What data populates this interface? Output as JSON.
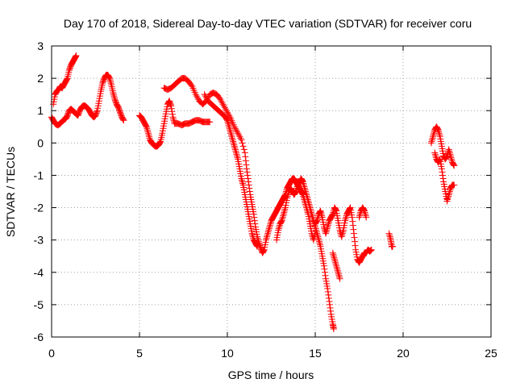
{
  "chart_data": {
    "type": "scatter",
    "title": "Day 170 of 2018, Sidereal Day-to-day VTEC variation (SDTVAR) for receiver coru",
    "xlabel": "GPS time / hours",
    "ylabel": "SDTVAR / TECUs",
    "xlim": [
      0,
      25
    ],
    "ylim": [
      -6,
      3
    ],
    "xticks": [
      "0",
      "5",
      "10",
      "15",
      "20",
      "25"
    ],
    "yticks": [
      "-6",
      "-5",
      "-4",
      "-3",
      "-2",
      "-1",
      "0",
      "1",
      "2",
      "3"
    ],
    "grid": true,
    "marker": "+",
    "color": "#ff0000",
    "series": [
      {
        "name": "seg-a",
        "points": [
          [
            0.0,
            0.8
          ],
          [
            0.1,
            0.7
          ],
          [
            0.2,
            0.6
          ],
          [
            0.35,
            0.55
          ],
          [
            0.5,
            0.6
          ],
          [
            0.65,
            0.7
          ],
          [
            0.8,
            0.75
          ],
          [
            0.9,
            0.85
          ],
          [
            1.0,
            1.0
          ],
          [
            1.1,
            1.05
          ],
          [
            1.2,
            1.0
          ],
          [
            1.3,
            0.95
          ],
          [
            1.4,
            0.9
          ],
          [
            1.5,
            0.85
          ],
          [
            1.6,
            1.0
          ],
          [
            1.7,
            1.1
          ],
          [
            1.8,
            1.15
          ],
          [
            1.9,
            1.15
          ],
          [
            2.0,
            1.1
          ],
          [
            2.1,
            1.05
          ],
          [
            2.2,
            0.95
          ],
          [
            2.3,
            0.85
          ],
          [
            2.4,
            0.8
          ],
          [
            2.5,
            0.85
          ],
          [
            2.6,
            1.0
          ],
          [
            2.7,
            1.3
          ],
          [
            2.8,
            1.6
          ],
          [
            2.9,
            1.85
          ],
          [
            3.0,
            2.0
          ],
          [
            3.1,
            2.1
          ],
          [
            3.2,
            2.1
          ],
          [
            3.3,
            2.0
          ],
          [
            3.4,
            1.8
          ],
          [
            3.5,
            1.55
          ],
          [
            3.6,
            1.35
          ],
          [
            3.7,
            1.2
          ],
          [
            3.8,
            1.1
          ],
          [
            3.9,
            0.95
          ],
          [
            4.0,
            0.8
          ],
          [
            4.1,
            0.7
          ]
        ]
      },
      {
        "name": "seg-b",
        "points": [
          [
            0.1,
            1.2
          ],
          [
            0.2,
            1.5
          ],
          [
            0.3,
            1.6
          ],
          [
            0.4,
            1.65
          ],
          [
            0.5,
            1.75
          ],
          [
            0.6,
            1.7
          ],
          [
            0.7,
            1.8
          ],
          [
            0.8,
            1.9
          ],
          [
            0.9,
            2.0
          ],
          [
            1.0,
            2.25
          ],
          [
            1.1,
            2.4
          ],
          [
            1.2,
            2.5
          ],
          [
            1.3,
            2.6
          ],
          [
            1.4,
            2.7
          ]
        ]
      },
      {
        "name": "seg-c",
        "points": [
          [
            5.0,
            0.85
          ],
          [
            5.1,
            0.8
          ],
          [
            5.2,
            0.7
          ],
          [
            5.3,
            0.6
          ],
          [
            5.4,
            0.5
          ],
          [
            5.5,
            0.3
          ],
          [
            5.6,
            0.1
          ],
          [
            5.7,
            0.0
          ],
          [
            5.8,
            -0.05
          ],
          [
            5.9,
            -0.1
          ],
          [
            6.0,
            -0.1
          ],
          [
            6.1,
            -0.05
          ],
          [
            6.2,
            0.05
          ],
          [
            6.3,
            0.3
          ],
          [
            6.4,
            0.6
          ],
          [
            6.5,
            0.9
          ],
          [
            6.6,
            1.2
          ],
          [
            6.7,
            1.3
          ],
          [
            6.8,
            1.15
          ],
          [
            6.9,
            0.8
          ],
          [
            7.0,
            0.6
          ],
          [
            7.2,
            0.6
          ],
          [
            7.4,
            0.55
          ],
          [
            7.6,
            0.6
          ],
          [
            7.8,
            0.6
          ],
          [
            8.0,
            0.65
          ],
          [
            8.2,
            0.7
          ],
          [
            8.4,
            0.7
          ],
          [
            8.6,
            0.65
          ],
          [
            8.8,
            0.65
          ],
          [
            9.0,
            0.65
          ]
        ]
      },
      {
        "name": "seg-d",
        "points": [
          [
            6.4,
            1.7
          ],
          [
            6.6,
            1.65
          ],
          [
            6.8,
            1.7
          ],
          [
            7.0,
            1.8
          ],
          [
            7.2,
            1.9
          ],
          [
            7.4,
            2.0
          ],
          [
            7.6,
            2.0
          ],
          [
            7.8,
            1.9
          ],
          [
            8.0,
            1.75
          ],
          [
            8.2,
            1.5
          ],
          [
            8.4,
            1.3
          ],
          [
            8.6,
            1.2
          ],
          [
            8.8,
            1.3
          ],
          [
            9.0,
            1.5
          ],
          [
            9.2,
            1.55
          ],
          [
            9.4,
            1.5
          ],
          [
            9.6,
            1.35
          ],
          [
            9.8,
            1.15
          ],
          [
            10.0,
            0.95
          ],
          [
            10.2,
            0.75
          ],
          [
            10.4,
            0.5
          ],
          [
            10.6,
            0.3
          ],
          [
            10.8,
            0.1
          ],
          [
            11.0,
            -0.3
          ],
          [
            11.1,
            -0.8
          ],
          [
            11.2,
            -1.2
          ],
          [
            11.3,
            -1.6
          ],
          [
            11.4,
            -1.9
          ],
          [
            11.5,
            -2.2
          ],
          [
            11.6,
            -2.6
          ],
          [
            11.7,
            -2.9
          ],
          [
            11.8,
            -3.1
          ],
          [
            11.9,
            -3.25
          ],
          [
            12.0,
            -3.4
          ],
          [
            12.1,
            -3.3
          ],
          [
            12.2,
            -3.0
          ],
          [
            12.3,
            -2.8
          ],
          [
            12.4,
            -2.6
          ],
          [
            12.5,
            -2.4
          ],
          [
            12.6,
            -2.3
          ],
          [
            12.7,
            -2.2
          ],
          [
            12.8,
            -2.1
          ],
          [
            12.9,
            -2.0
          ],
          [
            13.0,
            -1.9
          ],
          [
            13.1,
            -1.8
          ],
          [
            13.2,
            -1.7
          ],
          [
            13.3,
            -1.6
          ],
          [
            13.4,
            -1.4
          ],
          [
            13.5,
            -1.3
          ],
          [
            13.6,
            -1.2
          ],
          [
            13.7,
            -1.1
          ],
          [
            13.8,
            -1.1
          ],
          [
            13.9,
            -1.2
          ],
          [
            14.0,
            -1.3
          ],
          [
            14.1,
            -1.4
          ],
          [
            14.2,
            -1.5
          ],
          [
            14.3,
            -1.6
          ],
          [
            14.4,
            -1.8
          ],
          [
            14.5,
            -2.0
          ],
          [
            14.6,
            -2.2
          ],
          [
            14.7,
            -2.5
          ],
          [
            14.8,
            -2.8
          ],
          [
            14.9,
            -3.0
          ],
          [
            15.0,
            -2.8
          ]
        ]
      },
      {
        "name": "seg-e",
        "points": [
          [
            8.7,
            1.5
          ],
          [
            8.9,
            1.3
          ],
          [
            9.1,
            1.2
          ],
          [
            9.3,
            1.1
          ],
          [
            9.5,
            1.0
          ],
          [
            9.7,
            0.9
          ],
          [
            9.9,
            0.8
          ],
          [
            10.0,
            0.7
          ],
          [
            10.1,
            0.5
          ],
          [
            10.2,
            0.3
          ],
          [
            10.3,
            0.1
          ],
          [
            10.4,
            -0.1
          ],
          [
            10.5,
            -0.3
          ],
          [
            10.6,
            -0.5
          ],
          [
            10.7,
            -0.8
          ],
          [
            10.8,
            -1.1
          ],
          [
            10.9,
            -1.3
          ],
          [
            11.0,
            -1.6
          ],
          [
            11.1,
            -1.9
          ],
          [
            11.2,
            -2.2
          ],
          [
            11.3,
            -2.5
          ],
          [
            11.4,
            -2.8
          ],
          [
            11.5,
            -3.0
          ],
          [
            11.6,
            -3.1
          ],
          [
            11.7,
            -3.2
          ]
        ]
      },
      {
        "name": "seg-f",
        "points": [
          [
            12.8,
            -3.0
          ],
          [
            12.9,
            -2.7
          ],
          [
            13.0,
            -2.5
          ],
          [
            13.1,
            -2.4
          ],
          [
            13.2,
            -2.2
          ],
          [
            13.3,
            -2.0
          ],
          [
            13.4,
            -1.7
          ],
          [
            13.5,
            -1.5
          ],
          [
            13.6,
            -1.4
          ],
          [
            13.7,
            -1.5
          ],
          [
            13.8,
            -1.6
          ],
          [
            13.9,
            -1.5
          ],
          [
            14.0,
            -1.3
          ],
          [
            14.1,
            -1.2
          ],
          [
            14.2,
            -1.1
          ],
          [
            14.3,
            -1.2
          ],
          [
            14.4,
            -1.4
          ],
          [
            14.5,
            -1.6
          ],
          [
            14.6,
            -1.8
          ],
          [
            14.7,
            -2.0
          ],
          [
            14.8,
            -2.2
          ],
          [
            14.9,
            -2.4
          ],
          [
            15.0,
            -2.6
          ],
          [
            15.1,
            -2.8
          ],
          [
            15.2,
            -3.0
          ],
          [
            15.3,
            -3.2
          ],
          [
            15.4,
            -3.5
          ],
          [
            15.5,
            -3.8
          ],
          [
            15.6,
            -4.2
          ],
          [
            15.7,
            -4.5
          ],
          [
            15.8,
            -4.9
          ],
          [
            15.9,
            -5.3
          ],
          [
            16.0,
            -5.6
          ],
          [
            16.05,
            -5.75
          ]
        ]
      },
      {
        "name": "seg-g",
        "points": [
          [
            15.0,
            -2.5
          ],
          [
            15.1,
            -2.4
          ],
          [
            15.2,
            -2.2
          ],
          [
            15.3,
            -2.1
          ],
          [
            15.4,
            -2.3
          ],
          [
            15.5,
            -2.6
          ],
          [
            15.6,
            -2.8
          ],
          [
            15.7,
            -2.6
          ],
          [
            15.8,
            -2.4
          ],
          [
            15.9,
            -2.3
          ],
          [
            16.0,
            -2.2
          ],
          [
            16.1,
            -2.0
          ],
          [
            16.2,
            -2.1
          ],
          [
            16.3,
            -2.4
          ],
          [
            16.4,
            -2.7
          ],
          [
            16.5,
            -2.9
          ],
          [
            16.6,
            -2.7
          ],
          [
            16.7,
            -2.4
          ],
          [
            16.8,
            -2.2
          ],
          [
            16.9,
            -2.1
          ],
          [
            17.0,
            -2.0
          ],
          [
            17.1,
            -2.3
          ],
          [
            17.2,
            -2.8
          ],
          [
            17.3,
            -3.3
          ],
          [
            17.4,
            -3.6
          ],
          [
            17.5,
            -3.7
          ],
          [
            17.6,
            -3.6
          ],
          [
            17.7,
            -3.5
          ],
          [
            17.8,
            -3.4
          ],
          [
            17.9,
            -3.4
          ],
          [
            18.0,
            -3.3
          ],
          [
            18.1,
            -3.35
          ],
          [
            18.2,
            -3.3
          ]
        ]
      },
      {
        "name": "seg-h",
        "points": [
          [
            16.0,
            -3.4
          ],
          [
            16.1,
            -3.6
          ],
          [
            16.2,
            -3.8
          ],
          [
            16.3,
            -4.0
          ],
          [
            16.4,
            -4.2
          ]
        ]
      },
      {
        "name": "seg-i",
        "points": [
          [
            17.5,
            -2.3
          ],
          [
            17.6,
            -2.1
          ],
          [
            17.7,
            -2.0
          ],
          [
            17.8,
            -2.1
          ],
          [
            17.9,
            -2.3
          ]
        ]
      },
      {
        "name": "seg-j",
        "points": [
          [
            19.2,
            -2.8
          ],
          [
            19.3,
            -3.0
          ],
          [
            19.35,
            -3.2
          ],
          [
            19.4,
            -3.2
          ]
        ]
      },
      {
        "name": "seg-k",
        "points": [
          [
            21.6,
            0.0
          ],
          [
            21.7,
            0.2
          ],
          [
            21.8,
            0.4
          ],
          [
            21.9,
            0.5
          ],
          [
            22.0,
            0.4
          ],
          [
            22.1,
            0.2
          ],
          [
            22.2,
            -0.1
          ],
          [
            22.3,
            -0.4
          ],
          [
            22.4,
            -0.5
          ],
          [
            22.5,
            -0.4
          ],
          [
            22.6,
            -0.2
          ],
          [
            22.7,
            -0.4
          ],
          [
            22.8,
            -0.6
          ],
          [
            22.9,
            -0.7
          ]
        ]
      },
      {
        "name": "seg-l",
        "points": [
          [
            21.8,
            -0.3
          ],
          [
            21.9,
            -0.5
          ],
          [
            22.0,
            -0.6
          ],
          [
            22.1,
            -0.5
          ],
          [
            22.2,
            -0.8
          ],
          [
            22.3,
            -1.2
          ],
          [
            22.4,
            -1.5
          ],
          [
            22.5,
            -1.8
          ],
          [
            22.6,
            -1.6
          ],
          [
            22.7,
            -1.4
          ],
          [
            22.8,
            -1.3
          ],
          [
            22.9,
            -1.3
          ]
        ]
      }
    ]
  }
}
